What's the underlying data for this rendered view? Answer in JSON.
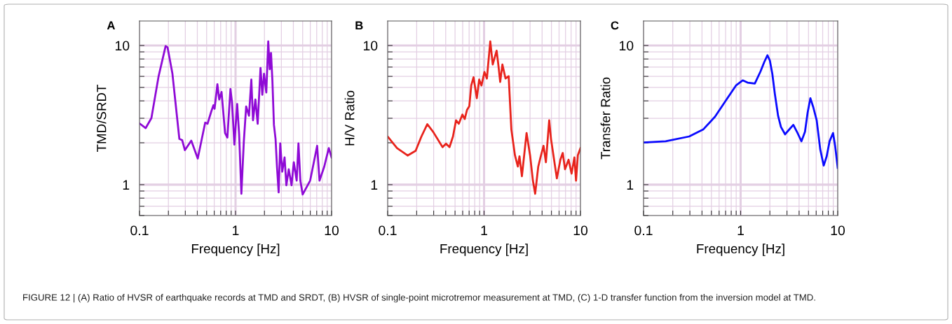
{
  "chart_data": [
    {
      "type": "line",
      "title": "A",
      "xlabel": "Frequency [Hz]",
      "ylabel": "TMD/SRDT",
      "log": "xy",
      "grid": true,
      "xlim": [
        0.1,
        10
      ],
      "ylim": [
        0.6,
        15
      ],
      "xticks": [
        0.1,
        {
          "value": 0.2,
          "label": null
        },
        {
          "value": 0.3,
          "label": null
        },
        {
          "value": 0.4,
          "label": null
        },
        {
          "value": 0.5,
          "label": null
        },
        {
          "value": 0.6,
          "label": null
        },
        {
          "value": 0.7,
          "label": null
        },
        {
          "value": 0.8,
          "label": null
        },
        {
          "value": 0.9,
          "label": null
        },
        1,
        {
          "value": 2,
          "label": null
        },
        {
          "value": 3,
          "label": null
        },
        {
          "value": 4,
          "label": null
        },
        {
          "value": 5,
          "label": null
        },
        {
          "value": 6,
          "label": null
        },
        {
          "value": 7,
          "label": null
        },
        {
          "value": 8,
          "label": null
        },
        {
          "value": 9,
          "label": null
        },
        10
      ],
      "yticks": [
        {
          "value": 0.6,
          "label": null
        },
        {
          "value": 0.7,
          "label": null
        },
        {
          "value": 0.8,
          "label": null
        },
        {
          "value": 0.9,
          "label": null
        },
        1,
        {
          "value": 2,
          "label": null
        },
        {
          "value": 3,
          "label": null
        },
        {
          "value": 4,
          "label": null
        },
        {
          "value": 5,
          "label": null
        },
        {
          "value": 6,
          "label": null
        },
        {
          "value": 7,
          "label": null
        },
        {
          "value": 8,
          "label": null
        },
        {
          "value": 9,
          "label": null
        },
        10
      ],
      "annotations": [
        "FIGURE 12 | (A) Ratio of HVSR of earthquake records at TMD and SRDT, (B) HVSR of single-point microtremor measurement at TMD, (C) 1-D transfer function from the inversion model at TMD."
      ],
      "series": [
        {
          "color": "#8f0ad6",
          "x": [
            0.101,
            0.116,
            0.133,
            0.158,
            0.187,
            0.196,
            0.22,
            0.26,
            0.278,
            0.297,
            0.346,
            0.404,
            0.483,
            0.511,
            0.556,
            0.588,
            0.605,
            0.647,
            0.676,
            0.715,
            0.778,
            0.822,
            0.885,
            0.92,
            0.972,
            1.04,
            1.09,
            1.15,
            1.22,
            1.29,
            1.38,
            1.46,
            1.52,
            1.61,
            1.7,
            1.82,
            1.9,
            1.98,
            2.09,
            2.19,
            2.27,
            2.34,
            2.42,
            2.51,
            2.61,
            2.7,
            2.81,
            2.92,
            3.06,
            3.24,
            3.38,
            3.58,
            3.83,
            4.04,
            4.33,
            4.52,
            4.73,
            5.0,
            5.98,
            7.07,
            7.49,
            8.39,
            9.35,
            10
          ],
          "values": [
            2.74,
            2.55,
            3.01,
            6.0,
            9.9,
            9.7,
            6.3,
            2.13,
            2.09,
            1.77,
            2.07,
            1.54,
            2.79,
            2.74,
            3.32,
            3.72,
            3.51,
            5.26,
            4.1,
            4.64,
            2.35,
            2.18,
            4.87,
            3.87,
            1.94,
            3.8,
            2.3,
            0.86,
            2.05,
            3.65,
            3.13,
            5.69,
            2.9,
            4.1,
            2.74,
            6.89,
            4.43,
            6.26,
            4.6,
            10.7,
            6.76,
            8.84,
            5.57,
            2.69,
            2.13,
            1.35,
            0.88,
            1.98,
            1.24,
            1.57,
            0.99,
            1.29,
            0.99,
            1.45,
            1.07,
            1.98,
            1.07,
            0.85,
            1.07,
            1.9,
            1.07,
            1.35,
            1.83,
            1.57
          ]
        }
      ]
    },
    {
      "type": "line",
      "title": "B",
      "xlabel": "Frequency [Hz]",
      "ylabel": "H/V Ratio",
      "log": "xy",
      "grid": true,
      "xlim": [
        0.1,
        10
      ],
      "ylim": [
        0.6,
        15
      ],
      "xticks": [
        0.1,
        {
          "value": 0.2,
          "label": null
        },
        {
          "value": 0.3,
          "label": null
        },
        {
          "value": 0.4,
          "label": null
        },
        {
          "value": 0.5,
          "label": null
        },
        {
          "value": 0.6,
          "label": null
        },
        {
          "value": 0.7,
          "label": null
        },
        {
          "value": 0.8,
          "label": null
        },
        {
          "value": 0.9,
          "label": null
        },
        1,
        {
          "value": 2,
          "label": null
        },
        {
          "value": 3,
          "label": null
        },
        {
          "value": 4,
          "label": null
        },
        {
          "value": 5,
          "label": null
        },
        {
          "value": 6,
          "label": null
        },
        {
          "value": 7,
          "label": null
        },
        {
          "value": 8,
          "label": null
        },
        {
          "value": 9,
          "label": null
        },
        10
      ],
      "yticks": [
        {
          "value": 0.6,
          "label": null
        },
        {
          "value": 0.7,
          "label": null
        },
        {
          "value": 0.8,
          "label": null
        },
        {
          "value": 0.9,
          "label": null
        },
        1,
        {
          "value": 2,
          "label": null
        },
        {
          "value": 3,
          "label": null
        },
        {
          "value": 4,
          "label": null
        },
        {
          "value": 5,
          "label": null
        },
        {
          "value": 6,
          "label": null
        },
        {
          "value": 7,
          "label": null
        },
        {
          "value": 8,
          "label": null
        },
        {
          "value": 9,
          "label": null
        },
        10
      ],
      "series": [
        {
          "color": "#e8231c",
          "x": [
            0.101,
            0.125,
            0.161,
            0.195,
            0.224,
            0.258,
            0.297,
            0.371,
            0.403,
            0.438,
            0.476,
            0.512,
            0.547,
            0.596,
            0.63,
            0.666,
            0.703,
            0.736,
            0.778,
            0.841,
            0.89,
            0.94,
            1.01,
            1.07,
            1.16,
            1.23,
            1.35,
            1.41,
            1.47,
            1.55,
            1.67,
            1.8,
            1.92,
            2.09,
            2.24,
            2.33,
            2.47,
            2.76,
            3.0,
            3.21,
            3.39,
            3.65,
            3.85,
            4.14,
            4.38,
            4.74,
            4.95,
            5.24,
            5.69,
            6.19,
            6.55,
            6.92,
            7.53,
            8.09,
            8.65,
            9.0,
            9.4,
            10
          ],
          "values": [
            2.2,
            1.83,
            1.62,
            1.75,
            2.22,
            2.72,
            2.39,
            1.86,
            1.97,
            1.86,
            2.22,
            2.9,
            2.74,
            3.19,
            2.96,
            3.45,
            3.66,
            5.16,
            5.91,
            4.18,
            5.69,
            5.16,
            6.45,
            5.79,
            10.7,
            7.3,
            9.18,
            7.16,
            5.47,
            7.3,
            5.79,
            6.02,
            2.49,
            1.63,
            1.35,
            1.6,
            1.15,
            2.35,
            1.63,
            1.07,
            0.86,
            1.35,
            1.57,
            1.9,
            1.45,
            2.9,
            2.13,
            1.63,
            1.11,
            1.51,
            1.69,
            1.29,
            1.51,
            1.2,
            1.57,
            1.07,
            1.63,
            1.83
          ]
        }
      ]
    },
    {
      "type": "line",
      "title": "C",
      "xlabel": "Frequency [Hz]",
      "ylabel": "Transfer Ratio",
      "log": "xy",
      "grid": true,
      "xlim": [
        0.1,
        10
      ],
      "ylim": [
        0.6,
        15
      ],
      "xticks": [
        0.1,
        {
          "value": 0.2,
          "label": null
        },
        {
          "value": 0.3,
          "label": null
        },
        {
          "value": 0.4,
          "label": null
        },
        {
          "value": 0.5,
          "label": null
        },
        {
          "value": 0.6,
          "label": null
        },
        {
          "value": 0.7,
          "label": null
        },
        {
          "value": 0.8,
          "label": null
        },
        {
          "value": 0.9,
          "label": null
        },
        1,
        {
          "value": 2,
          "label": null
        },
        {
          "value": 3,
          "label": null
        },
        {
          "value": 4,
          "label": null
        },
        {
          "value": 5,
          "label": null
        },
        {
          "value": 6,
          "label": null
        },
        {
          "value": 7,
          "label": null
        },
        {
          "value": 8,
          "label": null
        },
        {
          "value": 9,
          "label": null
        },
        10
      ],
      "yticks": [
        {
          "value": 0.6,
          "label": null
        },
        {
          "value": 0.7,
          "label": null
        },
        {
          "value": 0.8,
          "label": null
        },
        {
          "value": 0.9,
          "label": null
        },
        1,
        {
          "value": 2,
          "label": null
        },
        {
          "value": 3,
          "label": null
        },
        {
          "value": 4,
          "label": null
        },
        {
          "value": 5,
          "label": null
        },
        {
          "value": 6,
          "label": null
        },
        {
          "value": 7,
          "label": null
        },
        {
          "value": 8,
          "label": null
        },
        {
          "value": 9,
          "label": null
        },
        10
      ],
      "series": [
        {
          "color": "#0a0aff",
          "x": [
            0.1,
            0.169,
            0.295,
            0.411,
            0.543,
            0.717,
            0.895,
            1.05,
            1.18,
            1.4,
            1.6,
            1.75,
            1.89,
            2.0,
            2.12,
            2.25,
            2.43,
            2.6,
            2.87,
            3.1,
            3.49,
            3.8,
            4.23,
            4.6,
            4.9,
            5.23,
            5.6,
            6.07,
            6.6,
            7.17,
            7.7,
            8.24,
            8.95,
            9.4,
            10
          ],
          "values": [
            2.01,
            2.05,
            2.22,
            2.49,
            3.07,
            4.1,
            5.16,
            5.62,
            5.41,
            5.33,
            6.5,
            7.6,
            8.51,
            7.8,
            6.26,
            4.5,
            3.13,
            2.6,
            2.3,
            2.45,
            2.69,
            2.4,
            2.05,
            2.4,
            3.3,
            4.18,
            3.6,
            2.9,
            1.8,
            1.37,
            1.6,
            2.05,
            2.35,
            1.9,
            1.32
          ]
        }
      ]
    }
  ]
}
